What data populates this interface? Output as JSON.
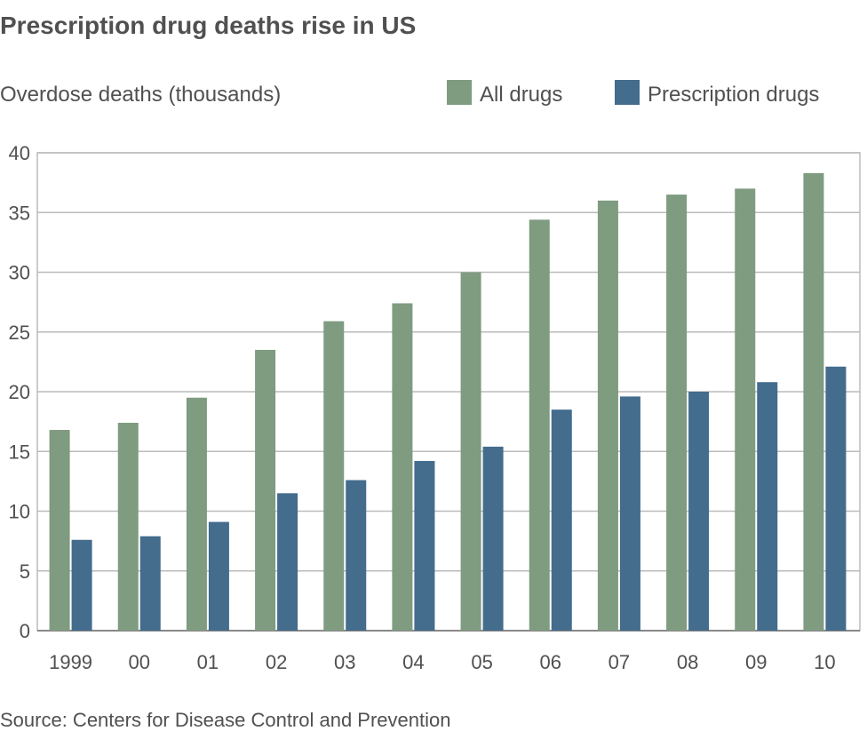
{
  "chart_data": {
    "type": "bar",
    "title": "Prescription drug deaths rise in US",
    "ylabel": "Overdose deaths (thousands)",
    "xlabel": "",
    "source": "Source: Centers for Disease Control and Prevention",
    "categories": [
      "1999",
      "00",
      "01",
      "02",
      "03",
      "04",
      "05",
      "06",
      "07",
      "08",
      "09",
      "10"
    ],
    "series": [
      {
        "name": "All drugs",
        "color": "#7f9b80",
        "values": [
          16.8,
          17.4,
          19.5,
          23.5,
          25.9,
          27.4,
          30.0,
          34.4,
          36.0,
          36.5,
          37.0,
          38.3
        ]
      },
      {
        "name": "Prescription drugs",
        "color": "#436c8d",
        "values": [
          7.6,
          7.9,
          9.1,
          11.5,
          12.6,
          14.2,
          15.4,
          18.5,
          19.6,
          20.0,
          20.8,
          22.1
        ]
      }
    ],
    "ylim": [
      0,
      40
    ],
    "yticks": [
      0,
      5,
      10,
      15,
      20,
      25,
      30,
      35,
      40
    ],
    "grid": true,
    "legend": "top-right"
  }
}
